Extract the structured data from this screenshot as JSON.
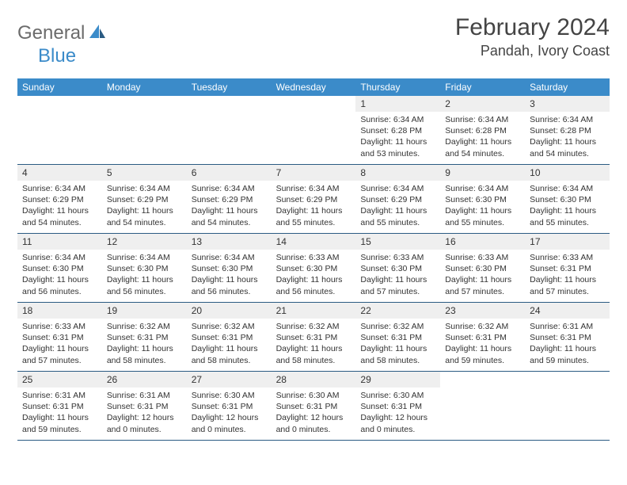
{
  "brand": {
    "part1": "General",
    "part2": "Blue"
  },
  "title": "February 2024",
  "location": "Pandah, Ivory Coast",
  "colors": {
    "header_bg": "#3b8bc9",
    "week_border": "#2b5b83",
    "daynum_bg": "#efefef",
    "text": "#333333",
    "logo_gray": "#6b6b6b",
    "logo_blue": "#3b8bc9"
  },
  "weekdays": [
    "Sunday",
    "Monday",
    "Tuesday",
    "Wednesday",
    "Thursday",
    "Friday",
    "Saturday"
  ],
  "weeks": [
    [
      null,
      null,
      null,
      null,
      {
        "n": "1",
        "sunrise": "Sunrise: 6:34 AM",
        "sunset": "Sunset: 6:28 PM",
        "daylight": "Daylight: 11 hours and 53 minutes."
      },
      {
        "n": "2",
        "sunrise": "Sunrise: 6:34 AM",
        "sunset": "Sunset: 6:28 PM",
        "daylight": "Daylight: 11 hours and 54 minutes."
      },
      {
        "n": "3",
        "sunrise": "Sunrise: 6:34 AM",
        "sunset": "Sunset: 6:28 PM",
        "daylight": "Daylight: 11 hours and 54 minutes."
      }
    ],
    [
      {
        "n": "4",
        "sunrise": "Sunrise: 6:34 AM",
        "sunset": "Sunset: 6:29 PM",
        "daylight": "Daylight: 11 hours and 54 minutes."
      },
      {
        "n": "5",
        "sunrise": "Sunrise: 6:34 AM",
        "sunset": "Sunset: 6:29 PM",
        "daylight": "Daylight: 11 hours and 54 minutes."
      },
      {
        "n": "6",
        "sunrise": "Sunrise: 6:34 AM",
        "sunset": "Sunset: 6:29 PM",
        "daylight": "Daylight: 11 hours and 54 minutes."
      },
      {
        "n": "7",
        "sunrise": "Sunrise: 6:34 AM",
        "sunset": "Sunset: 6:29 PM",
        "daylight": "Daylight: 11 hours and 55 minutes."
      },
      {
        "n": "8",
        "sunrise": "Sunrise: 6:34 AM",
        "sunset": "Sunset: 6:29 PM",
        "daylight": "Daylight: 11 hours and 55 minutes."
      },
      {
        "n": "9",
        "sunrise": "Sunrise: 6:34 AM",
        "sunset": "Sunset: 6:30 PM",
        "daylight": "Daylight: 11 hours and 55 minutes."
      },
      {
        "n": "10",
        "sunrise": "Sunrise: 6:34 AM",
        "sunset": "Sunset: 6:30 PM",
        "daylight": "Daylight: 11 hours and 55 minutes."
      }
    ],
    [
      {
        "n": "11",
        "sunrise": "Sunrise: 6:34 AM",
        "sunset": "Sunset: 6:30 PM",
        "daylight": "Daylight: 11 hours and 56 minutes."
      },
      {
        "n": "12",
        "sunrise": "Sunrise: 6:34 AM",
        "sunset": "Sunset: 6:30 PM",
        "daylight": "Daylight: 11 hours and 56 minutes."
      },
      {
        "n": "13",
        "sunrise": "Sunrise: 6:34 AM",
        "sunset": "Sunset: 6:30 PM",
        "daylight": "Daylight: 11 hours and 56 minutes."
      },
      {
        "n": "14",
        "sunrise": "Sunrise: 6:33 AM",
        "sunset": "Sunset: 6:30 PM",
        "daylight": "Daylight: 11 hours and 56 minutes."
      },
      {
        "n": "15",
        "sunrise": "Sunrise: 6:33 AM",
        "sunset": "Sunset: 6:30 PM",
        "daylight": "Daylight: 11 hours and 57 minutes."
      },
      {
        "n": "16",
        "sunrise": "Sunrise: 6:33 AM",
        "sunset": "Sunset: 6:30 PM",
        "daylight": "Daylight: 11 hours and 57 minutes."
      },
      {
        "n": "17",
        "sunrise": "Sunrise: 6:33 AM",
        "sunset": "Sunset: 6:31 PM",
        "daylight": "Daylight: 11 hours and 57 minutes."
      }
    ],
    [
      {
        "n": "18",
        "sunrise": "Sunrise: 6:33 AM",
        "sunset": "Sunset: 6:31 PM",
        "daylight": "Daylight: 11 hours and 57 minutes."
      },
      {
        "n": "19",
        "sunrise": "Sunrise: 6:32 AM",
        "sunset": "Sunset: 6:31 PM",
        "daylight": "Daylight: 11 hours and 58 minutes."
      },
      {
        "n": "20",
        "sunrise": "Sunrise: 6:32 AM",
        "sunset": "Sunset: 6:31 PM",
        "daylight": "Daylight: 11 hours and 58 minutes."
      },
      {
        "n": "21",
        "sunrise": "Sunrise: 6:32 AM",
        "sunset": "Sunset: 6:31 PM",
        "daylight": "Daylight: 11 hours and 58 minutes."
      },
      {
        "n": "22",
        "sunrise": "Sunrise: 6:32 AM",
        "sunset": "Sunset: 6:31 PM",
        "daylight": "Daylight: 11 hours and 58 minutes."
      },
      {
        "n": "23",
        "sunrise": "Sunrise: 6:32 AM",
        "sunset": "Sunset: 6:31 PM",
        "daylight": "Daylight: 11 hours and 59 minutes."
      },
      {
        "n": "24",
        "sunrise": "Sunrise: 6:31 AM",
        "sunset": "Sunset: 6:31 PM",
        "daylight": "Daylight: 11 hours and 59 minutes."
      }
    ],
    [
      {
        "n": "25",
        "sunrise": "Sunrise: 6:31 AM",
        "sunset": "Sunset: 6:31 PM",
        "daylight": "Daylight: 11 hours and 59 minutes."
      },
      {
        "n": "26",
        "sunrise": "Sunrise: 6:31 AM",
        "sunset": "Sunset: 6:31 PM",
        "daylight": "Daylight: 12 hours and 0 minutes."
      },
      {
        "n": "27",
        "sunrise": "Sunrise: 6:30 AM",
        "sunset": "Sunset: 6:31 PM",
        "daylight": "Daylight: 12 hours and 0 minutes."
      },
      {
        "n": "28",
        "sunrise": "Sunrise: 6:30 AM",
        "sunset": "Sunset: 6:31 PM",
        "daylight": "Daylight: 12 hours and 0 minutes."
      },
      {
        "n": "29",
        "sunrise": "Sunrise: 6:30 AM",
        "sunset": "Sunset: 6:31 PM",
        "daylight": "Daylight: 12 hours and 0 minutes."
      },
      null,
      null
    ]
  ]
}
